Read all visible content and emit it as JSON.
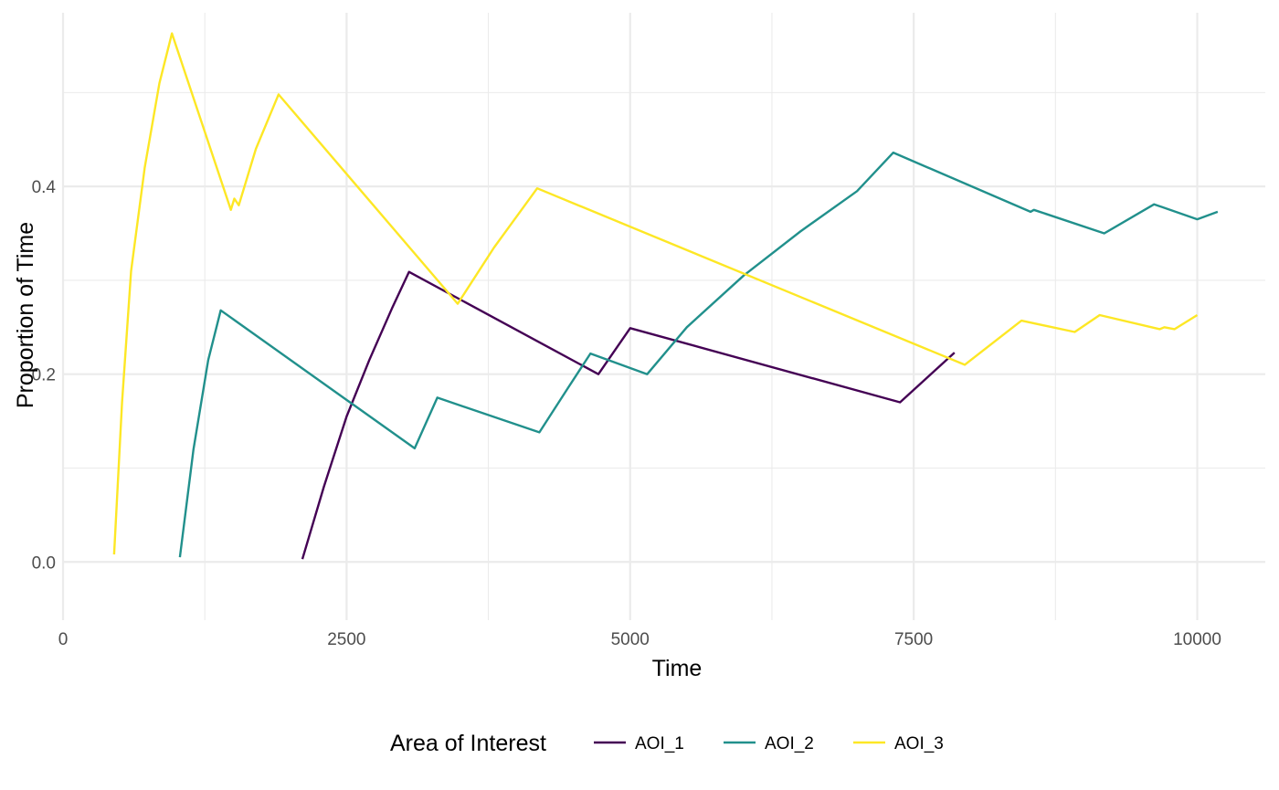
{
  "chart_data": {
    "type": "line",
    "title": "",
    "xlabel": "Time",
    "ylabel": "Proportion of Time",
    "xlim": [
      0,
      10600
    ],
    "ylim": [
      -0.062,
      0.585
    ],
    "x_ticks": [
      0,
      2500,
      5000,
      7500,
      10000
    ],
    "x_tick_labels": [
      "0",
      "2500",
      "5000",
      "7500",
      "10000"
    ],
    "x_minor_ticks": [
      1250,
      3750,
      6250,
      8750
    ],
    "y_ticks": [
      0.0,
      0.2,
      0.4
    ],
    "y_tick_labels": [
      "0.0",
      "0.2",
      "0.4"
    ],
    "y_minor_ticks": [
      0.1,
      0.3,
      0.5
    ],
    "grid": true,
    "legend": {
      "title": "Area of Interest",
      "position": "bottom"
    },
    "series": [
      {
        "name": "AOI_1",
        "color": "#440154",
        "points": [
          [
            2110,
            0.003
          ],
          [
            2300,
            0.08
          ],
          [
            2500,
            0.155
          ],
          [
            2700,
            0.215
          ],
          [
            2900,
            0.27
          ],
          [
            3050,
            0.309
          ],
          [
            4720,
            0.2
          ],
          [
            5000,
            0.249
          ],
          [
            7380,
            0.17
          ],
          [
            7860,
            0.223
          ]
        ]
      },
      {
        "name": "AOI_2",
        "color": "#21908C",
        "points": [
          [
            1030,
            0.005
          ],
          [
            1150,
            0.12
          ],
          [
            1280,
            0.215
          ],
          [
            1390,
            0.268
          ],
          [
            3100,
            0.121
          ],
          [
            3300,
            0.175
          ],
          [
            4200,
            0.138
          ],
          [
            4450,
            0.185
          ],
          [
            4650,
            0.222
          ],
          [
            5150,
            0.2
          ],
          [
            5500,
            0.25
          ],
          [
            6000,
            0.305
          ],
          [
            6500,
            0.352
          ],
          [
            7000,
            0.395
          ],
          [
            7320,
            0.436
          ],
          [
            8530,
            0.373
          ],
          [
            8560,
            0.375
          ],
          [
            9180,
            0.35
          ],
          [
            9620,
            0.381
          ],
          [
            10000,
            0.365
          ],
          [
            10180,
            0.373
          ]
        ]
      },
      {
        "name": "AOI_3",
        "color": "#FDE725",
        "points": [
          [
            450,
            0.008
          ],
          [
            520,
            0.17
          ],
          [
            600,
            0.31
          ],
          [
            720,
            0.42
          ],
          [
            850,
            0.51
          ],
          [
            960,
            0.563
          ],
          [
            1480,
            0.375
          ],
          [
            1510,
            0.387
          ],
          [
            1550,
            0.38
          ],
          [
            1700,
            0.44
          ],
          [
            1900,
            0.498
          ],
          [
            3480,
            0.275
          ],
          [
            3800,
            0.335
          ],
          [
            4180,
            0.398
          ],
          [
            7950,
            0.21
          ],
          [
            8450,
            0.257
          ],
          [
            8920,
            0.245
          ],
          [
            9140,
            0.263
          ],
          [
            9670,
            0.248
          ],
          [
            9710,
            0.25
          ],
          [
            9800,
            0.248
          ],
          [
            10000,
            0.263
          ]
        ]
      }
    ]
  }
}
